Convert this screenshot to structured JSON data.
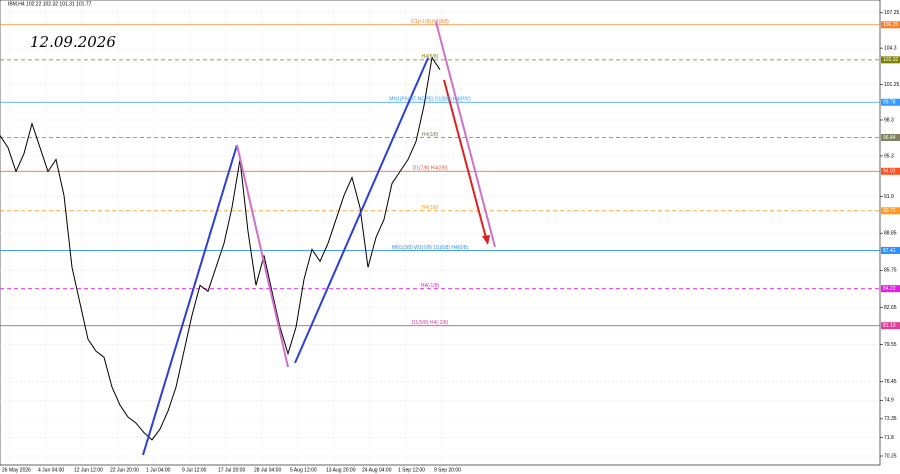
{
  "chart_data": {
    "type": "line",
    "title": "IBM,H4 102.22 102.32 101.31 101.77",
    "annotation": "12.09.2026",
    "x_labels": [
      "26 May 2026",
      "4 Jun 04:00",
      "12 Jun 12:00",
      "22 Jun 20:00",
      "1 Jul 04:00",
      "9 Jul 12:00",
      "17 Jul 20:00",
      "28 Jul 04:00",
      "5 Aug 12:00",
      "13 Aug 20:00",
      "24 Aug 04:00",
      "1 Sep 12:00",
      "9 Sep 20:00"
    ],
    "series": [
      {
        "name": "IBM",
        "color": "#000000",
        "values": [
          97,
          96,
          94,
          95.5,
          98,
          96,
          94,
          95,
          92,
          86,
          83,
          80,
          79,
          78.5,
          76,
          74.5,
          73.5,
          73,
          72.2,
          71.6,
          72.5,
          74,
          76,
          79,
          82,
          84.5,
          84,
          86,
          88,
          91,
          95,
          89,
          84.5,
          87,
          84,
          81,
          78.8,
          81,
          85,
          87.5,
          86.5,
          88,
          90,
          92,
          93.5,
          91,
          86,
          88.5,
          90,
          93,
          94,
          95,
          96.5,
          99.5,
          103.5,
          102.5
        ]
      }
    ],
    "levels": [
      {
        "label": "D1(+1/8) H4(8/8)",
        "value": 106.25,
        "color": "#ff7f27",
        "dashed": false
      },
      {
        "label": "H4(5/8)",
        "value": 103.32,
        "color": "#808000",
        "dashed": true
      },
      {
        "label": "MN1(PIVOT NOPE) D1(8/8) H4(PIV)",
        "value": 99.78,
        "color": "#3399ff",
        "dashed": false
      },
      {
        "label": "H4(3/8)",
        "value": 96.84,
        "color": "#808060",
        "dashed": true
      },
      {
        "label": "D1(7/8) H4(2/8)",
        "value": 94.02,
        "color": "#ff5020",
        "dashed": false
      },
      {
        "label": "H4(1/8)",
        "value": 90.72,
        "color": "#ff9a20",
        "dashed": true
      },
      {
        "label": "MN1(3/8) W1(7/8) D1(6/8) H4(0/8)",
        "value": 87.41,
        "color": "#2b8fff",
        "dashed": false
      },
      {
        "label": "H4(-1/8)",
        "value": 84.22,
        "color": "#e020e0",
        "dashed": true
      },
      {
        "label": "D1(5/8) H4(-2/8)",
        "value": 81.13,
        "color": "#e0409a",
        "dashed": false
      }
    ],
    "ylim": [
      69.5,
      107.9
    ],
    "yticks": [
      107.25,
      104.3,
      101.25,
      98.3,
      95.3,
      91.9,
      88.85,
      85.75,
      82.65,
      79.55,
      76.45,
      74.9,
      73.35,
      71.8,
      70.25
    ]
  }
}
